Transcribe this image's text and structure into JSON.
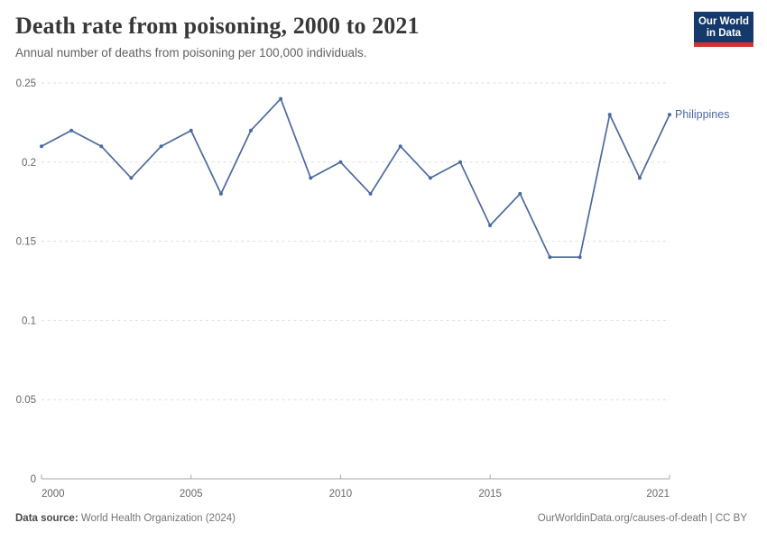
{
  "header": {
    "title": "Death rate from poisoning, 2000 to 2021",
    "subtitle": "Annual number of deaths from poisoning per 100,000 individuals.",
    "logo": {
      "line1": "Our World",
      "line2": "in Data",
      "bg_color": "#14396a",
      "bar_color": "#d0342c"
    }
  },
  "chart_data": {
    "type": "line",
    "title": "Death rate from poisoning, 2000 to 2021",
    "xlabel": "",
    "ylabel": "",
    "xlim": [
      2000,
      2021
    ],
    "ylim": [
      0,
      0.25
    ],
    "grid": "dashed horizontal gridlines",
    "legend_position": "end-of-line label",
    "x_ticks": [
      {
        "v": 2000,
        "label": "2000"
      },
      {
        "v": 2005,
        "label": "2005"
      },
      {
        "v": 2010,
        "label": "2010"
      },
      {
        "v": 2015,
        "label": "2015"
      },
      {
        "v": 2021,
        "label": "2021"
      }
    ],
    "y_ticks": [
      {
        "v": 0,
        "label": "0"
      },
      {
        "v": 0.05,
        "label": "0.05"
      },
      {
        "v": 0.1,
        "label": "0.1"
      },
      {
        "v": 0.15,
        "label": "0.15"
      },
      {
        "v": 0.2,
        "label": "0.2"
      },
      {
        "v": 0.25,
        "label": "0.25"
      }
    ],
    "series": [
      {
        "name": "Philippines",
        "color": "#4b69a0",
        "x": [
          2000,
          2001,
          2002,
          2003,
          2004,
          2005,
          2006,
          2007,
          2008,
          2009,
          2010,
          2011,
          2012,
          2013,
          2014,
          2015,
          2016,
          2017,
          2018,
          2019,
          2020,
          2021
        ],
        "values": [
          0.21,
          0.22,
          0.21,
          0.19,
          0.21,
          0.22,
          0.18,
          0.22,
          0.24,
          0.19,
          0.2,
          0.18,
          0.21,
          0.19,
          0.2,
          0.16,
          0.18,
          0.14,
          0.14,
          0.23,
          0.19,
          0.23
        ]
      }
    ]
  },
  "footer": {
    "datasource_label": "Data source:",
    "datasource_value": "World Health Organization (2024)",
    "license": "OurWorldinData.org/causes-of-death | CC BY"
  }
}
